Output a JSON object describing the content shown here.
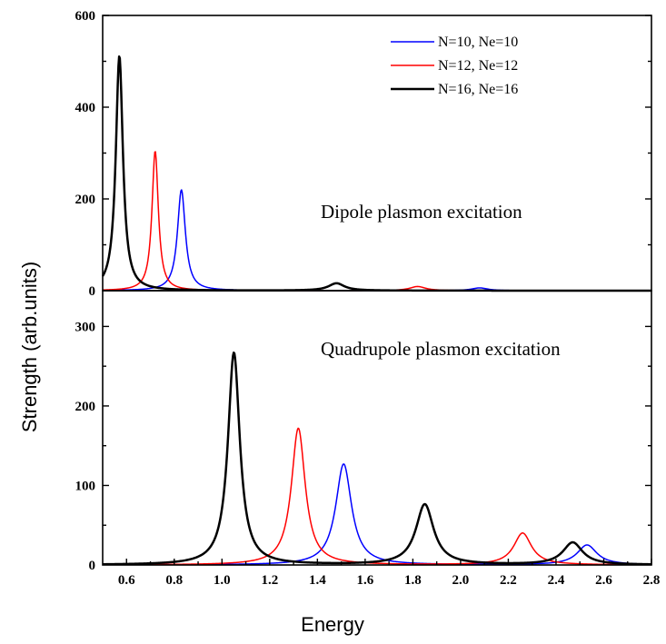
{
  "chart_data": {
    "type": "line",
    "xlabel": "Energy",
    "ylabel": "Strength (arb.units)",
    "xlim": [
      0.5,
      2.8
    ],
    "x_ticks": [
      "0.6",
      "0.8",
      "1.0",
      "1.2",
      "1.4",
      "1.6",
      "1.8",
      "2.0",
      "2.2",
      "2.4",
      "2.6",
      "2.8"
    ],
    "legend": {
      "placement": "top-right of upper panel",
      "entries": [
        {
          "label": "N=10, Ne=10",
          "color": "#0000ff"
        },
        {
          "label": "N=12, Ne=12",
          "color": "#ff0000"
        },
        {
          "label": "N=16, Ne=16",
          "color": "#000000"
        }
      ]
    },
    "panels": [
      {
        "annotation": "Dipole plasmon excitation",
        "ylim": [
          0,
          600
        ],
        "y_ticks": [
          "0",
          "200",
          "400",
          "600"
        ],
        "series": [
          {
            "name": "N=10, Ne=10",
            "color": "#0000ff",
            "peaks": [
              {
                "x": 0.83,
                "y": 220,
                "w": 0.02
              },
              {
                "x": 2.08,
                "y": 6,
                "w": 0.04
              }
            ]
          },
          {
            "name": "N=12, Ne=12",
            "color": "#ff0000",
            "peaks": [
              {
                "x": 0.72,
                "y": 305,
                "w": 0.016
              },
              {
                "x": 1.82,
                "y": 9,
                "w": 0.04
              }
            ]
          },
          {
            "name": "N=16, Ne=16",
            "color": "#000000",
            "peaks": [
              {
                "x": 0.57,
                "y": 512,
                "w": 0.018
              },
              {
                "x": 1.48,
                "y": 16,
                "w": 0.04
              }
            ]
          }
        ]
      },
      {
        "annotation": "Quadrupole plasmon excitation",
        "ylim": [
          0,
          345
        ],
        "y_ticks": [
          "0",
          "100",
          "200",
          "300"
        ],
        "series": [
          {
            "name": "N=10, Ne=10",
            "color": "#0000ff",
            "peaks": [
              {
                "x": 1.51,
                "y": 127,
                "w": 0.04
              },
              {
                "x": 2.53,
                "y": 25,
                "w": 0.05
              }
            ]
          },
          {
            "name": "N=12, Ne=12",
            "color": "#ff0000",
            "peaks": [
              {
                "x": 1.32,
                "y": 172,
                "w": 0.035
              },
              {
                "x": 2.26,
                "y": 40,
                "w": 0.045
              }
            ]
          },
          {
            "name": "N=16, Ne=16",
            "color": "#000000",
            "peaks": [
              {
                "x": 1.05,
                "y": 267,
                "w": 0.03
              },
              {
                "x": 1.85,
                "y": 76,
                "w": 0.045
              },
              {
                "x": 2.47,
                "y": 28,
                "w": 0.05
              }
            ]
          }
        ]
      }
    ]
  }
}
